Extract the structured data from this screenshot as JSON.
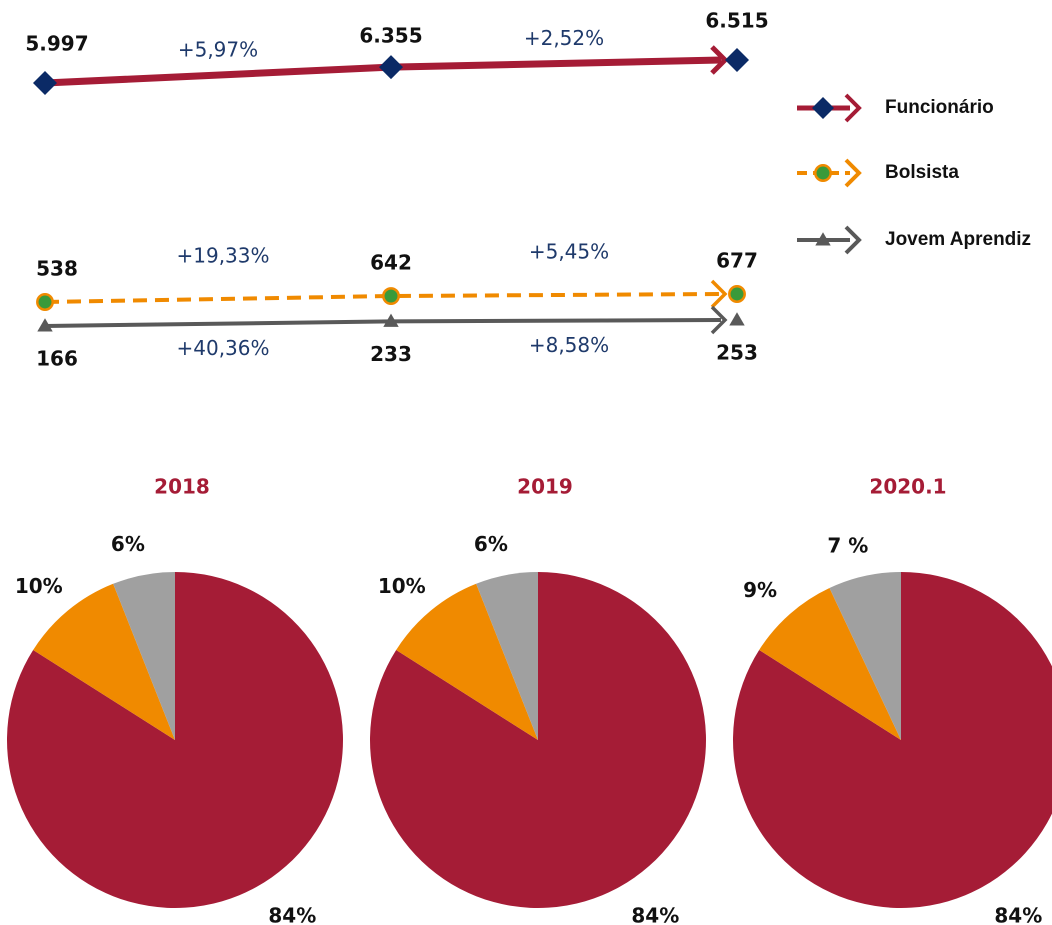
{
  "chart_data": [
    {
      "type": "line",
      "categories": [
        null,
        null,
        null
      ],
      "legend": "right",
      "series": [
        {
          "name": "Funcionário",
          "color": "#a51c36",
          "marker": "diamond",
          "marker_color": "#0b2a66",
          "dash": false,
          "label_side": "above",
          "values": [
            5997,
            6355,
            6515
          ],
          "value_labels": [
            "5.997",
            "6.355",
            "6.515"
          ],
          "change_labels": [
            "+5,97%",
            "+2,52%"
          ]
        },
        {
          "name": "Bolsista",
          "color": "#f08a00",
          "marker": "circle",
          "marker_color": "#3a9a3a",
          "dash": true,
          "label_side": "above",
          "values": [
            538,
            642,
            677
          ],
          "change_labels": [
            "+19,33%",
            "+5,45%"
          ]
        },
        {
          "name": "Jovem Aprendiz",
          "color": "#595959",
          "marker": "triangle",
          "marker_color": "#595959",
          "dash": false,
          "label_side": "below",
          "values": [
            166,
            233,
            253
          ],
          "change_labels": [
            "+40,36%",
            "+8,58%"
          ]
        }
      ]
    },
    {
      "type": "pie",
      "title": "2018",
      "values": [
        84,
        10,
        6
      ],
      "value_labels": [
        "84%",
        "10%",
        "6%"
      ],
      "colors": [
        "#a51c36",
        "#f08a00",
        "#a0a0a0"
      ]
    },
    {
      "type": "pie",
      "title": "2019",
      "values": [
        84,
        10,
        6
      ],
      "value_labels": [
        "84%",
        "10%",
        "6%"
      ],
      "colors": [
        "#a51c36",
        "#f08a00",
        "#a0a0a0"
      ]
    },
    {
      "type": "pie",
      "title": "2020.1",
      "values": [
        84,
        9,
        7
      ],
      "value_labels": [
        "84%",
        "9%",
        "7 %"
      ],
      "colors": [
        "#a51c36",
        "#f08a00",
        "#a0a0a0"
      ]
    }
  ]
}
